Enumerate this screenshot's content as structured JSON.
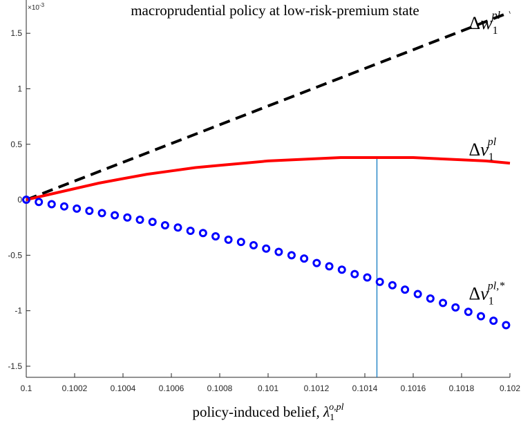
{
  "chart_data": {
    "type": "line",
    "title": "macroprudential policy at low-risk-premium state",
    "xlabel_text": "policy-induced belief, ",
    "xlabel_symbol": "λ",
    "xlabel_sup": "o,pl",
    "xlabel_sub": "1",
    "ylabel": "",
    "y_exponent_label": "×10",
    "y_exponent_power": "-3",
    "xlim": [
      0.1,
      0.102
    ],
    "ylim": [
      -0.0016,
      0.0018
    ],
    "x_ticks": [
      0.1,
      0.1002,
      0.1004,
      0.1006,
      0.1008,
      0.101,
      0.1012,
      0.1014,
      0.1016,
      0.1018,
      0.102
    ],
    "x_tick_labels": [
      "0.1",
      "0.1002",
      "0.1004",
      "0.1006",
      "0.1008",
      "0.101",
      "0.1012",
      "0.1014",
      "0.1016",
      "0.1018",
      "0.102"
    ],
    "y_ticks": [
      -0.0015,
      -0.001,
      -0.0005,
      0,
      0.0005,
      0.001,
      0.0015
    ],
    "y_tick_labels": [
      "-1.5",
      "-1",
      "-0.5",
      "0",
      "0.5",
      "1",
      "1.5"
    ],
    "grid": false,
    "series": [
      {
        "name": "Δw",
        "name_sup": "pl",
        "name_sub": "1",
        "style": "dashed",
        "color": "#000000",
        "x": [
          0.1,
          0.102
        ],
        "y": [
          0.0,
          0.00169
        ]
      },
      {
        "name": "Δv",
        "name_sup": "pl",
        "name_sub": "1",
        "style": "solid",
        "color": "#ff0000",
        "x": [
          0.1,
          0.1001,
          0.1002,
          0.1003,
          0.1004,
          0.1005,
          0.1006,
          0.1007,
          0.1008,
          0.1009,
          0.101,
          0.1011,
          0.1012,
          0.1013,
          0.1014,
          0.1015,
          0.1016,
          0.1017,
          0.1018,
          0.1019,
          0.102
        ],
        "y": [
          0.0,
          5e-05,
          0.0001,
          0.00015,
          0.00019,
          0.00023,
          0.00026,
          0.00029,
          0.00031,
          0.00033,
          0.00035,
          0.00036,
          0.00037,
          0.00038,
          0.00038,
          0.00038,
          0.00038,
          0.00037,
          0.00036,
          0.00035,
          0.00033
        ]
      },
      {
        "name": "Δv",
        "name_sup": "pl,*",
        "name_sub": "1",
        "style": "markers",
        "color": "#0000ff",
        "x": [
          0.1,
          0.100052,
          0.100105,
          0.100157,
          0.100209,
          0.100261,
          0.100313,
          0.100366,
          0.100418,
          0.10047,
          0.100522,
          0.100574,
          0.100627,
          0.100679,
          0.100731,
          0.100783,
          0.100836,
          0.100888,
          0.10094,
          0.100992,
          0.101044,
          0.101097,
          0.101149,
          0.101201,
          0.101253,
          0.101305,
          0.101358,
          0.10141,
          0.101462,
          0.101514,
          0.101566,
          0.101619,
          0.101671,
          0.101723,
          0.101775,
          0.101828,
          0.10188,
          0.101932,
          0.101984
        ],
        "y": [
          0.0,
          -2e-05,
          -4e-05,
          -6e-05,
          -8e-05,
          -0.0001,
          -0.00012,
          -0.00014,
          -0.00016,
          -0.00018,
          -0.0002,
          -0.00023,
          -0.00025,
          -0.00028,
          -0.0003,
          -0.00033,
          -0.00036,
          -0.00038,
          -0.00041,
          -0.00044,
          -0.00047,
          -0.0005,
          -0.00053,
          -0.00057,
          -0.0006,
          -0.00063,
          -0.00067,
          -0.0007,
          -0.00074,
          -0.00077,
          -0.00081,
          -0.00085,
          -0.00089,
          -0.00093,
          -0.00097,
          -0.00101,
          -0.00105,
          -0.00109,
          -0.00113
        ]
      }
    ],
    "vline": {
      "x": 0.10145,
      "y_from": -0.0016,
      "y_to": 0.00038,
      "color": "#0072bd"
    }
  }
}
